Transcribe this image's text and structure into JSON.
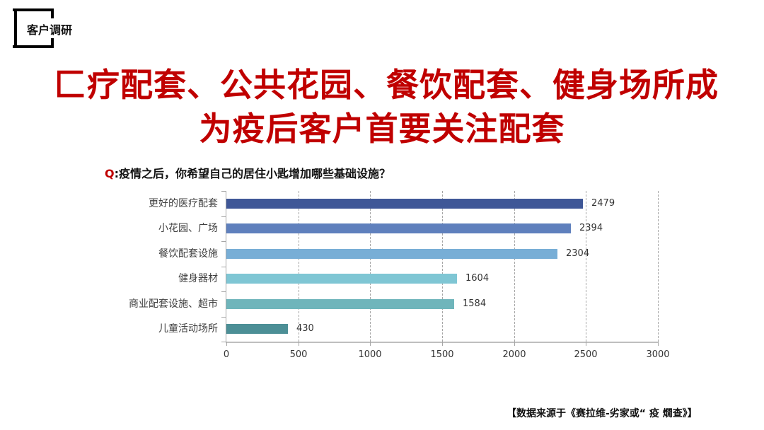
{
  "section_tag": {
    "label": "客户调研"
  },
  "headline": {
    "line1": "匚疗配套、公共花园、餐饮配套、健身场所成",
    "line2": "为疫后客户首要关注配套"
  },
  "question": {
    "prefix": "Q",
    "text": ":疫情之后，你希望自己的居住小匙增加哪些基础设施？"
  },
  "source_note": "【数据来源于《赛拉维-劣家或“ 疫 燗查》】",
  "colors": {
    "headline": "#c00000",
    "bars": [
      "#3f5797",
      "#5f80bd",
      "#78aed6",
      "#7fc6d4",
      "#6fb5bb",
      "#4c8f96"
    ]
  },
  "chart_data": {
    "type": "bar",
    "orientation": "horizontal",
    "title": "Q:疫情之后，你希望自己的居住小匙增加哪些基础设施？",
    "xlabel": "",
    "ylabel": "",
    "categories": [
      "更好的医疗配套",
      "小花园、广场",
      "餐饮配套设施",
      "健身器材",
      "商业配套设施、超市",
      "儿童活动场所"
    ],
    "values": [
      2479,
      2394,
      2304,
      1604,
      1584,
      430
    ],
    "value_labels": [
      "2479",
      "2394",
      "2304",
      "1604",
      "1584",
      "430"
    ],
    "xlim": [
      0,
      3000
    ],
    "xticks": [
      "0",
      "500",
      "1000",
      "1500",
      "2000",
      "2500",
      "3000"
    ],
    "grid": "vertical dashed",
    "legend": "none"
  }
}
